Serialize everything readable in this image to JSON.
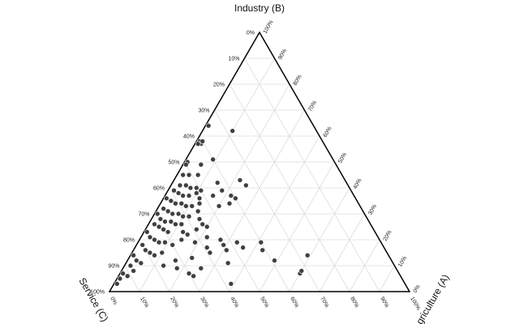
{
  "chart_data": {
    "type": "ternary",
    "a_label": "Agriculture (A)",
    "b_label": "Industry (B)",
    "c_label": "Service (C)",
    "color": "#404040",
    "grid": true,
    "ticks": [
      {
        "value": 0,
        "label": "0%"
      },
      {
        "value": 10,
        "label": "10%"
      },
      {
        "value": 20,
        "label": "20%"
      },
      {
        "value": 30,
        "label": "30%"
      },
      {
        "value": 40,
        "label": "40%"
      },
      {
        "value": 50,
        "label": "50%"
      },
      {
        "value": 60,
        "label": "60%"
      },
      {
        "value": 70,
        "label": "70%"
      },
      {
        "value": 80,
        "label": "80%"
      },
      {
        "value": 90,
        "label": "90%"
      },
      {
        "value": 100,
        "label": "100%"
      }
    ],
    "a": [
      1,
      10,
      1,
      2,
      1,
      2,
      9,
      1,
      1,
      6,
      2,
      4,
      7,
      15,
      22,
      25,
      22,
      24,
      23,
      18,
      16,
      20,
      3,
      5,
      7,
      9,
      11,
      2,
      4,
      6,
      8,
      10,
      12,
      1,
      3,
      5,
      7,
      9,
      11,
      13,
      14,
      2,
      4,
      6,
      8,
      10,
      12,
      1,
      3,
      5,
      7,
      9,
      11,
      16,
      18,
      2,
      4,
      6,
      8,
      13,
      15,
      17,
      20,
      1,
      3,
      5,
      7,
      9,
      12,
      14,
      19,
      22,
      24,
      26,
      2,
      4,
      6,
      8,
      1,
      3,
      5,
      2,
      4,
      1,
      3,
      1,
      1,
      10,
      16,
      23,
      25,
      26,
      34,
      39,
      41,
      43,
      49,
      59,
      60,
      60,
      29,
      31,
      27,
      33,
      36,
      21,
      18,
      13
    ],
    "b": [
      64,
      62,
      58,
      57,
      57,
      58,
      51,
      50,
      49,
      49,
      45,
      45,
      45,
      42,
      43,
      41,
      37,
      36,
      34,
      39,
      37,
      33,
      41,
      41,
      40,
      40,
      39,
      39,
      38,
      37,
      37,
      38,
      36,
      36,
      35,
      34,
      34,
      33,
      33,
      34,
      31,
      32,
      31,
      30,
      30,
      29,
      29,
      30,
      28,
      27,
      27,
      26,
      26,
      28,
      26,
      26,
      25,
      24,
      23,
      23,
      22,
      24,
      25,
      23,
      21,
      20,
      19,
      19,
      18,
      20,
      19,
      21,
      17,
      15,
      18,
      16,
      15,
      14,
      14,
      12,
      11,
      10,
      8,
      7,
      6,
      5,
      3,
      15,
      12,
      7,
      6,
      9,
      11,
      3,
      19,
      16,
      12,
      14,
      7,
      8,
      18,
      16,
      20,
      19,
      17,
      13,
      9,
      10
    ],
    "c": [
      35,
      28,
      41,
      41,
      42,
      40,
      40,
      49,
      50,
      45,
      53,
      51,
      48,
      43,
      35,
      34,
      41,
      40,
      43,
      43,
      47,
      47,
      56,
      54,
      53,
      51,
      50,
      59,
      58,
      57,
      55,
      52,
      52,
      63,
      62,
      61,
      59,
      58,
      56,
      53,
      55,
      66,
      65,
      64,
      62,
      61,
      59,
      69,
      69,
      68,
      66,
      65,
      63,
      56,
      56,
      72,
      71,
      70,
      69,
      64,
      63,
      59,
      55,
      76,
      76,
      75,
      74,
      72,
      70,
      66,
      62,
      57,
      59,
      59,
      80,
      80,
      79,
      78,
      85,
      85,
      84,
      88,
      88,
      92,
      91,
      94,
      96,
      75,
      72,
      70,
      69,
      65,
      55,
      58,
      40,
      41,
      39,
      27,
      33,
      32,
      53,
      53,
      53,
      48,
      47,
      66,
      73,
      77
    ]
  }
}
